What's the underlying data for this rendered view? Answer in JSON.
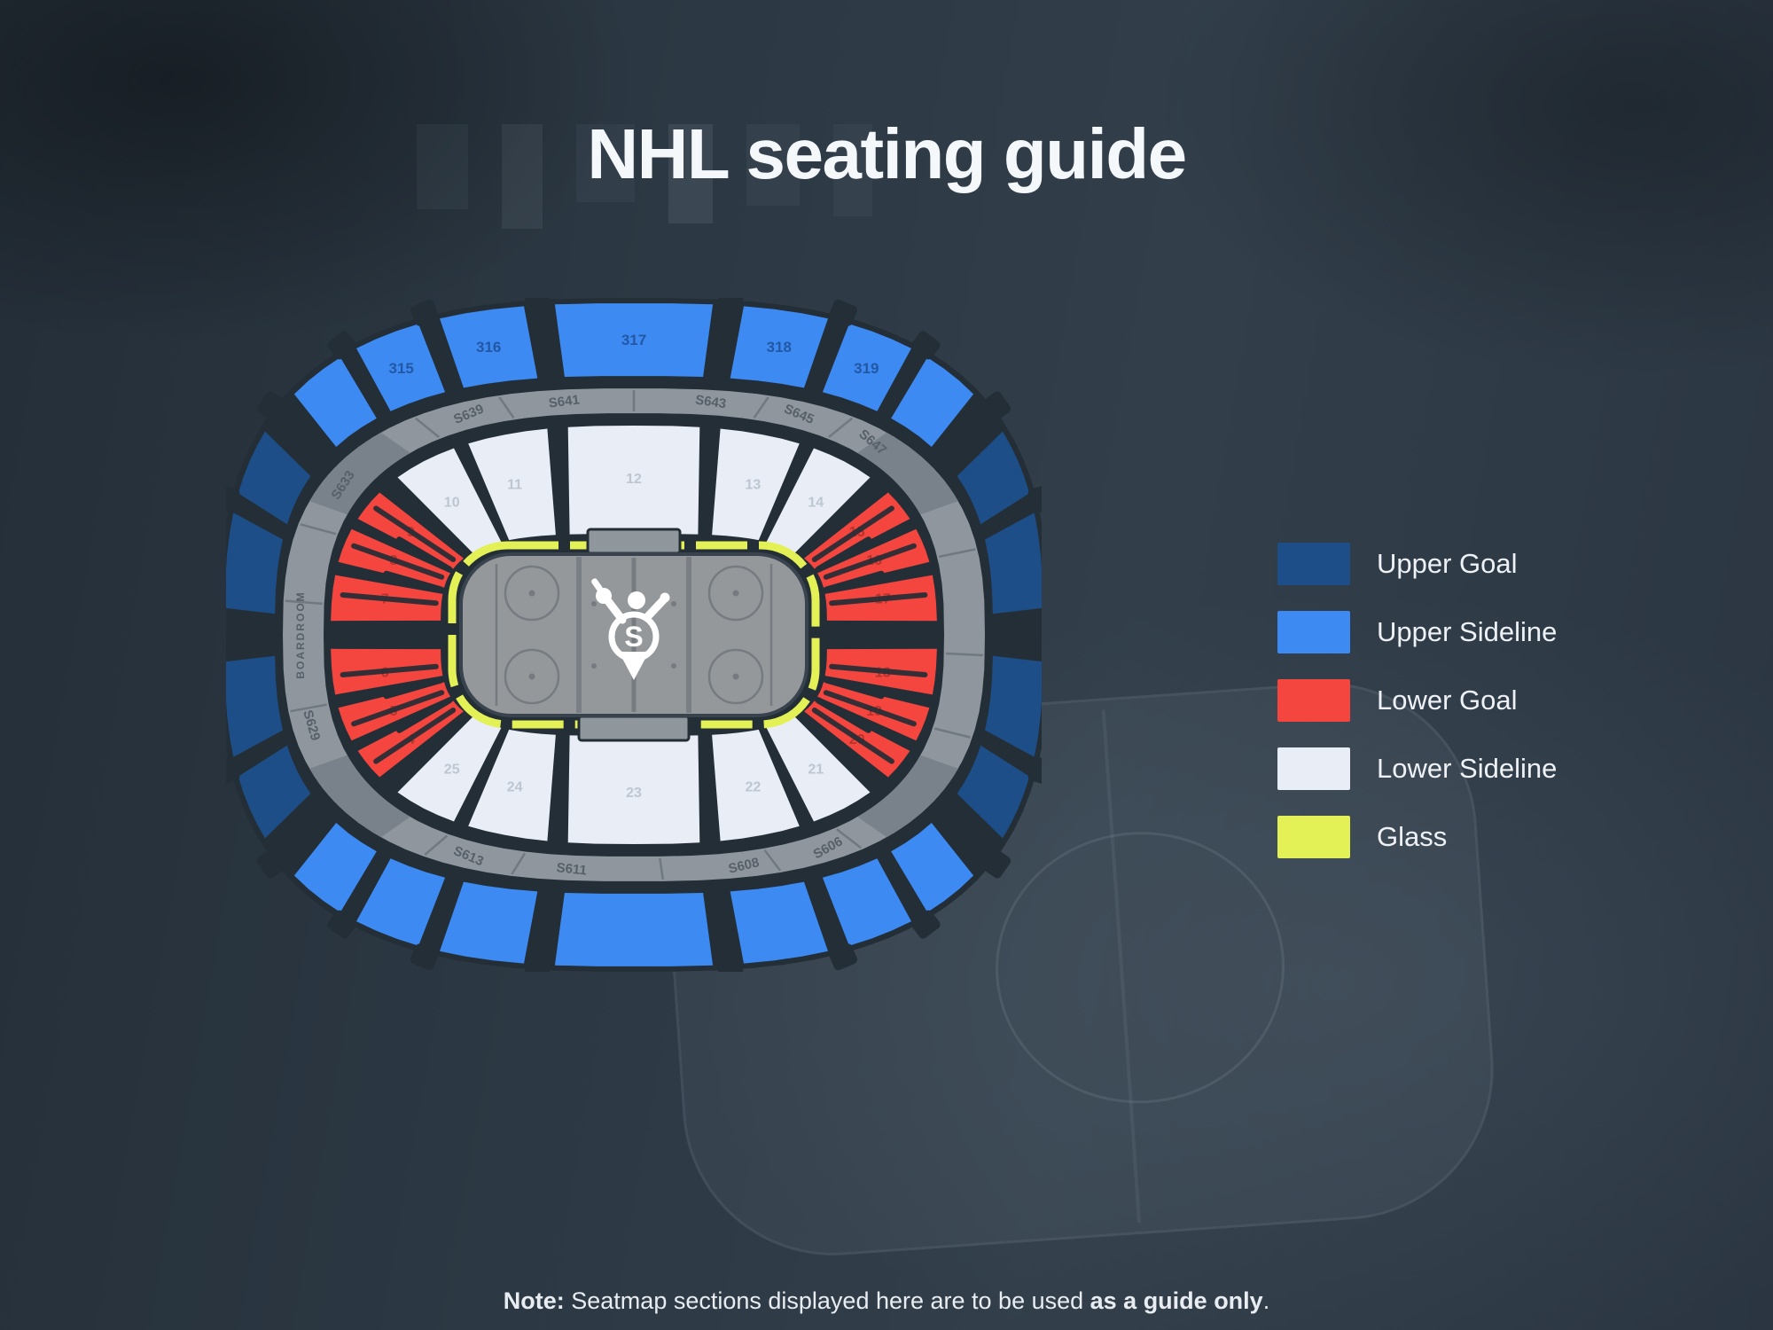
{
  "page": {
    "title": "NHL seating guide",
    "note_prefix": "Note:",
    "note_body": " Seatmap sections displayed here are to be used ",
    "note_bold": "as a guide only",
    "note_suffix": "."
  },
  "legend": {
    "items": [
      {
        "role": "upper_goal",
        "label": "Upper Goal",
        "color": "#1d4e87"
      },
      {
        "role": "upper_sideline",
        "label": "Upper Sideline",
        "color": "#3d8bf2"
      },
      {
        "role": "lower_goal",
        "label": "Lower Goal",
        "color": "#f4463e"
      },
      {
        "role": "lower_sideline",
        "label": "Lower Sideline",
        "color": "#e8edf6"
      },
      {
        "role": "glass",
        "label": "Glass",
        "color": "#e4f156"
      }
    ]
  },
  "seatmap": {
    "center_mark": "S",
    "club_label": "BOARDROOM",
    "concourse_labels": [
      {
        "text": "S633",
        "angle": 147
      },
      {
        "text": "S639",
        "angle": 113
      },
      {
        "text": "S641",
        "angle": 97
      },
      {
        "text": "S643",
        "angle": 82
      },
      {
        "text": "S645",
        "angle": 67
      },
      {
        "text": "S647",
        "angle": 50
      },
      {
        "text": "S629",
        "angle": 196
      },
      {
        "text": "S613",
        "angle": 247
      },
      {
        "text": "S611",
        "angle": 264
      },
      {
        "text": "S608",
        "angle": 283
      },
      {
        "text": "S606",
        "angle": 299
      }
    ],
    "tiers": {
      "upper": [
        {
          "role": "upper_sideline",
          "from": 38,
          "to": 142,
          "count": 7,
          "labels": [
            "",
            "319",
            "318",
            "317",
            "316",
            "315",
            ""
          ]
        },
        {
          "role": "upper_goal",
          "from": 148,
          "to": 212,
          "count": 4,
          "labels": []
        },
        {
          "role": "upper_sideline",
          "from": 218,
          "to": 322,
          "count": 7,
          "labels": []
        },
        {
          "role": "upper_goal",
          "from": 328,
          "to": 392,
          "count": 4,
          "labels": []
        }
      ],
      "lower": [
        {
          "role": "lower_sideline",
          "from": 42,
          "to": 138,
          "count": 5,
          "labels": [
            "14",
            "13",
            "12",
            "11",
            "10"
          ]
        },
        {
          "role": "lower_goal",
          "from": 141,
          "to": 219,
          "count": 6,
          "labels": [
            "9",
            "8",
            "7",
            "6",
            "5",
            "4"
          ]
        },
        {
          "role": "lower_sideline",
          "from": 222,
          "to": 318,
          "count": 5,
          "labels": [
            "25",
            "24",
            "23",
            "22",
            "21"
          ]
        },
        {
          "role": "lower_goal",
          "from": 321,
          "to": 399,
          "count": 6,
          "labels": [
            "20",
            "19",
            "18",
            "17",
            "16",
            "15"
          ]
        }
      ]
    }
  }
}
